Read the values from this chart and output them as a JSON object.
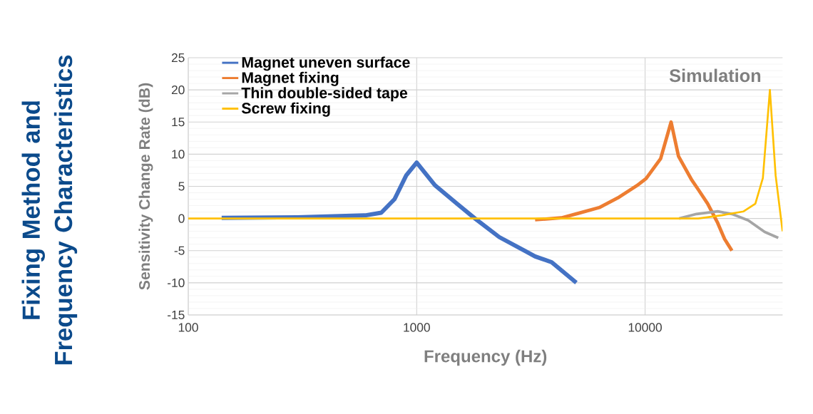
{
  "chart_data": {
    "type": "line",
    "title": "Fixing Method and Frequency Characteristics",
    "xlabel": "Frequency (Hz)",
    "ylabel": "Sensitivity Change Rate (dB)",
    "log": "x",
    "xlim": [
      100,
      40000
    ],
    "ylim": [
      -15,
      25
    ],
    "xticks": [
      100,
      1000,
      10000
    ],
    "yticks": [
      -15,
      -10,
      -5,
      0,
      5,
      10,
      15,
      20,
      25
    ],
    "grid": true,
    "legend": "top left",
    "marker": "none",
    "line_style": "solid",
    "annotations": [
      "Simulation"
    ],
    "series": [
      {
        "name": "Magnet uneven surface",
        "color": "#4472c4",
        "x": [
          140,
          300,
          600,
          700,
          800,
          900,
          1000,
          1200,
          1500,
          1800,
          2300,
          3000,
          3300,
          3900,
          5000
        ],
        "values": [
          0.1,
          0.2,
          0.5,
          0.9,
          3.0,
          6.7,
          8.7,
          5.2,
          2.3,
          0,
          -2.9,
          -5.1,
          -5.9,
          -6.8,
          -10
        ]
      },
      {
        "name": "Magnet fixing",
        "color": "#ed7d31",
        "x": [
          3300,
          4300,
          5100,
          6300,
          7600,
          9200,
          10100,
          11700,
          13000,
          14000,
          16000,
          17100,
          18800,
          20800,
          22300,
          24000
        ],
        "values": [
          -0.2,
          0.1,
          0.8,
          1.7,
          3.2,
          5.1,
          6.2,
          9.3,
          15,
          9.7,
          6.0,
          4.5,
          2.3,
          -0.7,
          -3.2,
          -5
        ]
      },
      {
        "name": "Thin double-sided tape",
        "color": "#a5a5a5",
        "x": [
          14100,
          16800,
          20800,
          24000,
          28300,
          33400,
          38300
        ],
        "values": [
          0,
          0.7,
          1.1,
          0.7,
          -0.3,
          -2.1,
          -3.0
        ]
      },
      {
        "name": "Screw fixing",
        "color": "#ffc000",
        "x": [
          100,
          17100,
          21700,
          27000,
          30400,
          32800,
          35200,
          37300,
          40000
        ],
        "values": [
          0,
          0,
          0.5,
          1.1,
          2.3,
          6.3,
          20,
          6.7,
          -2
        ]
      }
    ]
  }
}
